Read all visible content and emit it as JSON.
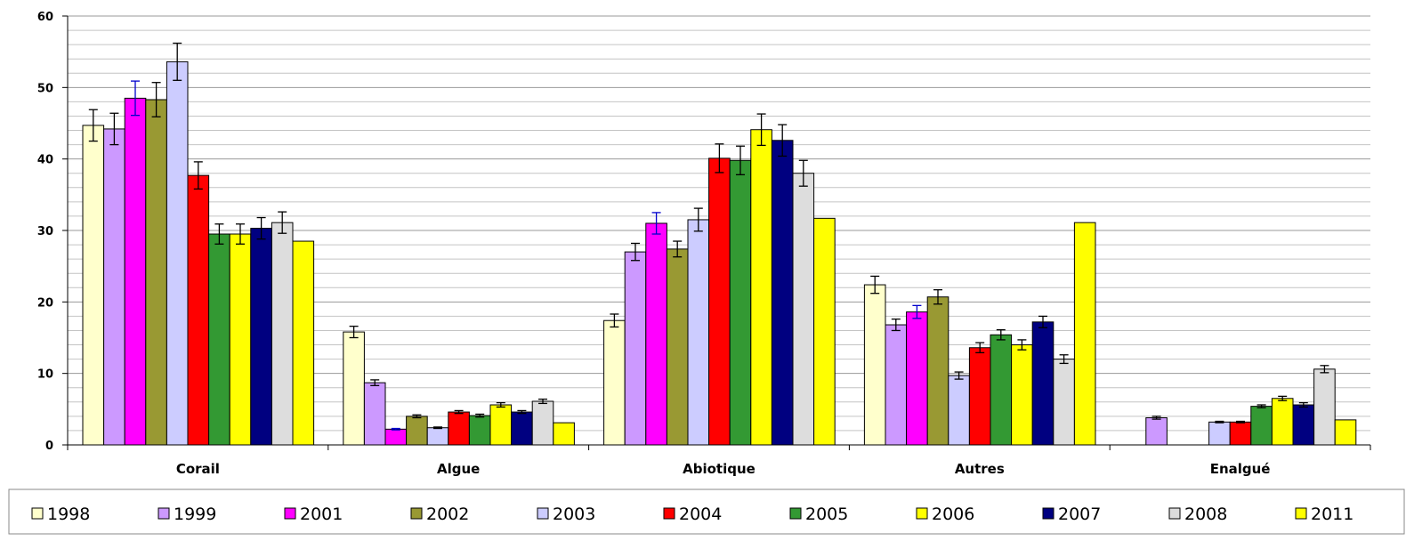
{
  "chart_data": {
    "type": "bar",
    "title": "",
    "xlabel": "",
    "ylabel": "",
    "ylim": [
      0,
      60
    ],
    "yticks": [
      "0",
      "10",
      "20",
      "30",
      "40",
      "50",
      "60"
    ],
    "grid": true,
    "legend_position": "bottom",
    "categories": [
      "Corail",
      "Algue",
      "Abiotique",
      "Autres",
      "Enalgué"
    ],
    "series": [
      {
        "name": "1998",
        "color": "#ffffcc",
        "values": [
          44.7,
          15.8,
          17.4,
          22.4,
          null
        ],
        "errors": [
          2.2,
          0.8,
          0.9,
          1.2,
          null
        ]
      },
      {
        "name": "1999",
        "color": "#cc99ff",
        "values": [
          44.2,
          8.7,
          27.0,
          16.8,
          3.8
        ],
        "errors": [
          2.2,
          0.4,
          1.2,
          0.8,
          0.2
        ]
      },
      {
        "name": "2001",
        "color": "#ff00ff",
        "values": [
          48.5,
          2.2,
          31.0,
          18.6,
          null
        ],
        "errors": [
          2.4,
          0.1,
          1.5,
          0.9,
          null
        ]
      },
      {
        "name": "2002",
        "color": "#999933",
        "values": [
          48.3,
          4.0,
          27.4,
          20.7,
          null
        ],
        "errors": [
          2.4,
          0.2,
          1.1,
          1.0,
          null
        ]
      },
      {
        "name": "2003",
        "color": "#ccccff",
        "values": [
          53.6,
          2.4,
          31.5,
          9.7,
          3.2
        ],
        "errors": [
          2.6,
          0.1,
          1.6,
          0.5,
          0.1
        ]
      },
      {
        "name": "2004",
        "color": "#ff0000",
        "values": [
          37.7,
          4.6,
          40.1,
          13.6,
          3.2
        ],
        "errors": [
          1.9,
          0.2,
          2.0,
          0.7,
          0.1
        ]
      },
      {
        "name": "2005",
        "color": "#339933",
        "values": [
          29.5,
          4.1,
          39.8,
          15.4,
          5.4
        ],
        "errors": [
          1.4,
          0.2,
          2.0,
          0.7,
          0.2
        ]
      },
      {
        "name": "2006",
        "color": "#ffff00",
        "values": [
          29.5,
          5.6,
          44.1,
          14.0,
          6.5
        ],
        "errors": [
          1.4,
          0.3,
          2.2,
          0.7,
          0.3
        ]
      },
      {
        "name": "2007",
        "color": "#000080",
        "values": [
          30.3,
          4.6,
          42.6,
          17.2,
          5.6
        ],
        "errors": [
          1.5,
          0.2,
          2.2,
          0.8,
          0.3
        ]
      },
      {
        "name": "2008",
        "color": "#dddddd",
        "values": [
          31.1,
          6.1,
          38.0,
          12.0,
          10.6
        ],
        "errors": [
          1.5,
          0.3,
          1.8,
          0.6,
          0.5
        ]
      },
      {
        "name": "2011",
        "color": "#ffff00",
        "values": [
          28.5,
          3.1,
          31.7,
          31.1,
          3.5
        ],
        "errors": [
          null,
          null,
          null,
          null,
          null
        ]
      }
    ]
  }
}
